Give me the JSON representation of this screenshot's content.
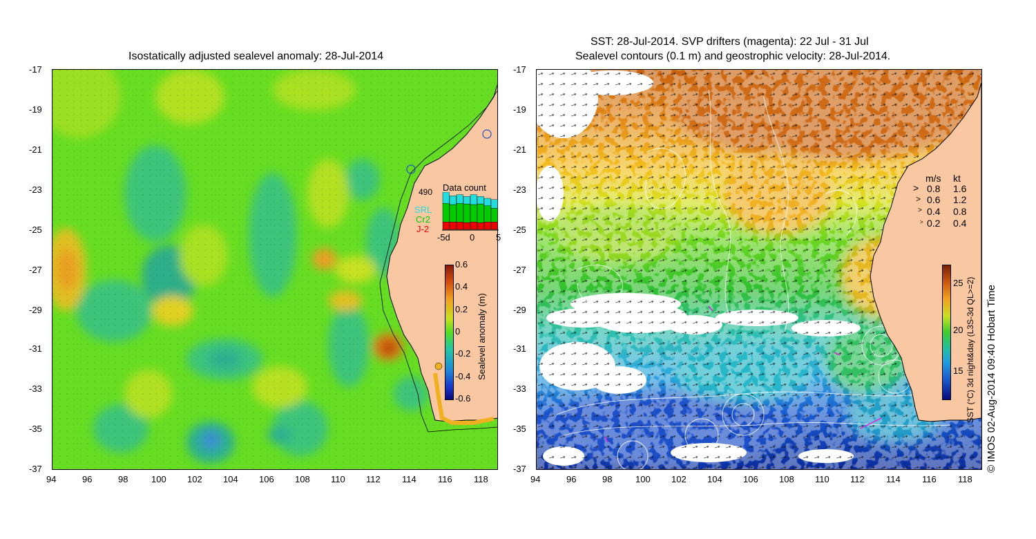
{
  "left_title": "Isostatically adjusted sealevel anomaly: 28-Jul-2014",
  "right_title_1": "SST: 28-Jul-2014. SVP drifters (magenta): 22 Jul - 31 Jul",
  "right_title_2": "Sealevel contours (0.1 m) and geostrophic velocity: 28-Jul-2014.",
  "lat_ticks": [
    "-17",
    "-19",
    "-21",
    "-23",
    "-25",
    "-27",
    "-29",
    "-31",
    "-33",
    "-35",
    "-37"
  ],
  "lon_ticks": [
    "94",
    "96",
    "98",
    "100",
    "102",
    "104",
    "106",
    "108",
    "110",
    "112",
    "114",
    "116",
    "118"
  ],
  "data_count": {
    "number": "490",
    "title": "Data count",
    "legend": [
      {
        "name": "SRL",
        "color": "#22dddd"
      },
      {
        "name": "Cr2",
        "color": "#00cc00"
      },
      {
        "name": "J-2",
        "color": "#ee0000"
      }
    ],
    "x_ticks": [
      "-5d",
      "0",
      "5"
    ],
    "bars": [
      {
        "srl": 18,
        "cr2": 30,
        "j2": 12
      },
      {
        "srl": 14,
        "cr2": 28,
        "j2": 12
      },
      {
        "srl": 14,
        "cr2": 30,
        "j2": 12
      },
      {
        "srl": 12,
        "cr2": 30,
        "j2": 11
      },
      {
        "srl": 16,
        "cr2": 28,
        "j2": 12
      },
      {
        "srl": 12,
        "cr2": 30,
        "j2": 11
      },
      {
        "srl": 12,
        "cr2": 26,
        "j2": 12
      },
      {
        "srl": 14,
        "cr2": 22,
        "j2": 12
      }
    ]
  },
  "sla_colorbar": {
    "label": "Sealevel anomaly (m)",
    "ticks": [
      "0.6",
      "0.4",
      "0.2",
      "0",
      "-0.2",
      "-0.4",
      "-0.6"
    ]
  },
  "sst_colorbar": {
    "label": "SST (°C) 3d night&day (L3S-3d QL>=2)",
    "ticks": [
      "25",
      "20",
      "15"
    ]
  },
  "speed_legend": {
    "header_ms": "m/s",
    "header_kt": "kt",
    "rows": [
      {
        "ms": "0.8",
        "kt": "1.6"
      },
      {
        "ms": "0.6",
        "kt": "1.2"
      },
      {
        "ms": "0.4",
        "kt": "0.8"
      },
      {
        "ms": "0.2",
        "kt": "0.4"
      }
    ]
  },
  "credit": "© IMOS 02-Aug-2014 09:40 Hobart Time",
  "colors": {
    "land": "#f9c7a2",
    "sla_base": "#55dd22",
    "sst_warm": "#d7761a",
    "sst_cold": "#0a2a9a"
  }
}
